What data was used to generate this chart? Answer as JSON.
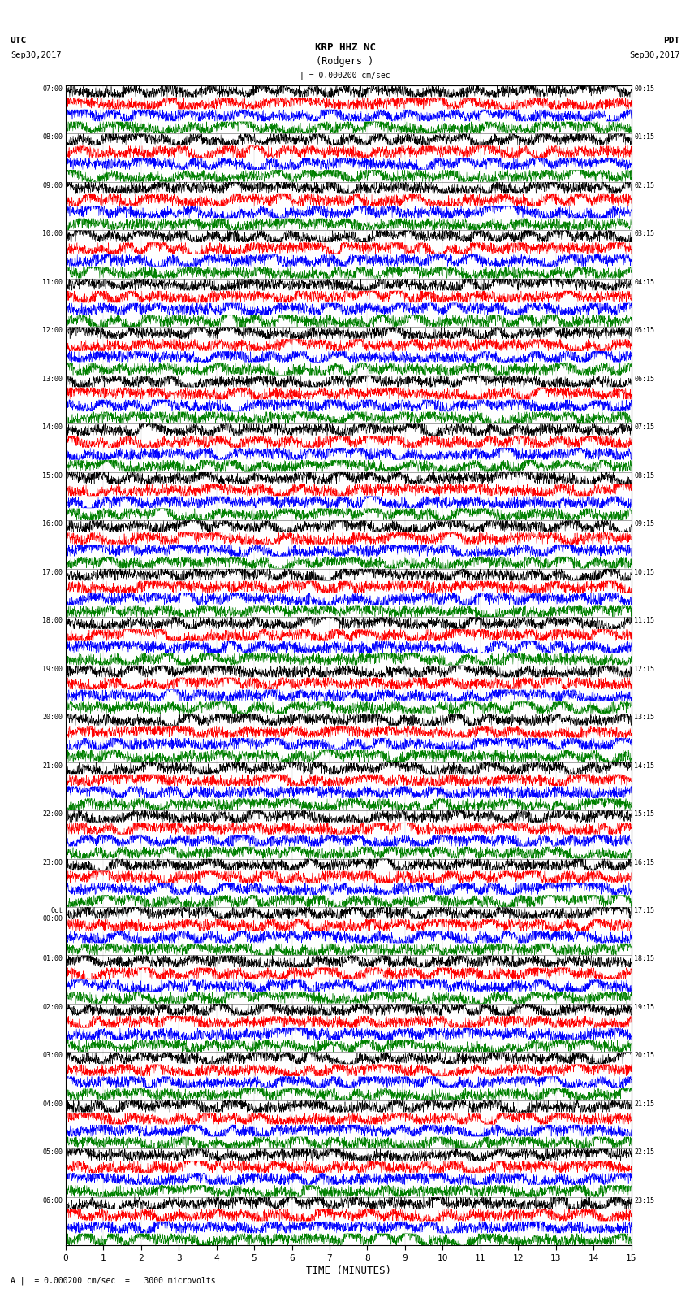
{
  "title_line1": "KRP HHZ NC",
  "title_line2": "(Rodgers )",
  "scale_label": "| = 0.000200 cm/sec",
  "bottom_label": "A |  = 0.000200 cm/sec  =   3000 microvolts",
  "xlabel": "TIME (MINUTES)",
  "utc_label1": "UTC",
  "utc_label2": "Sep30,2017",
  "pdt_label1": "PDT",
  "pdt_label2": "Sep30,2017",
  "left_times": [
    "07:00",
    "08:00",
    "09:00",
    "10:00",
    "11:00",
    "12:00",
    "13:00",
    "14:00",
    "15:00",
    "16:00",
    "17:00",
    "18:00",
    "19:00",
    "20:00",
    "21:00",
    "22:00",
    "23:00",
    "Oct\n00:00",
    "01:00",
    "02:00",
    "03:00",
    "04:00",
    "05:00",
    "06:00"
  ],
  "right_times": [
    "00:15",
    "01:15",
    "02:15",
    "03:15",
    "04:15",
    "05:15",
    "06:15",
    "07:15",
    "08:15",
    "09:15",
    "10:15",
    "11:15",
    "12:15",
    "13:15",
    "14:15",
    "15:15",
    "16:15",
    "17:15",
    "18:15",
    "19:15",
    "20:15",
    "21:15",
    "22:15",
    "23:15"
  ],
  "n_rows": 24,
  "traces_per_row": 4,
  "trace_colors": [
    "black",
    "red",
    "blue",
    "green"
  ],
  "background_color": "white",
  "fig_width": 8.5,
  "fig_height": 16.13,
  "dpi": 100,
  "random_seed": 42
}
